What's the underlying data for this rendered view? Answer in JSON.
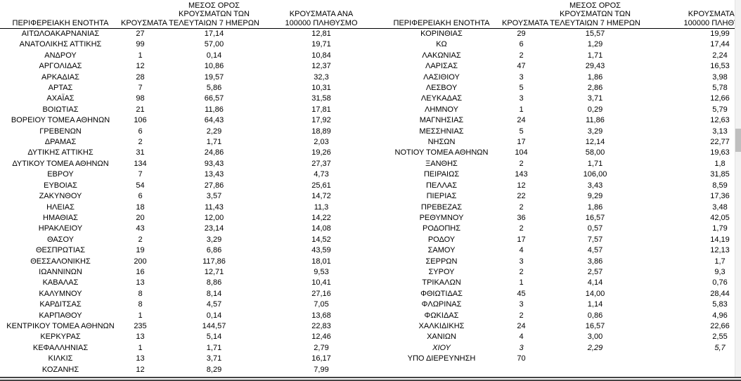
{
  "table": {
    "headers": {
      "region": "ΠΕΡΙΦΕΡΕΙΑΚΗ ΕΝΟΤΗΤΑ",
      "cases": "ΚΡΟΥΣΜΑΤΑ",
      "avg7_line1": "ΜΕΣΟΣ ΟΡΟΣ",
      "avg7_line2": "ΚΡΟΥΣΜΑΤΩΝ ΤΩΝ",
      "avg7_line3": "ΤΕΛΕΥΤΑΙΩΝ 7 ΗΜΕΡΩΝ",
      "per100k_line1": "ΚΡΟΥΣΜΑΤΑ ΑΝΑ",
      "per100k_line2": "100000 ΠΛΗΘΥΣΜΟ"
    },
    "left_rows": [
      {
        "region": "ΑΙΤΩΛΟΑΚΑΡΝΑΝΙΑΣ",
        "cases": "27",
        "avg7": "17,14",
        "per100k": "12,81"
      },
      {
        "region": "ΑΝΑΤΟΛΙΚΗΣ ΑΤΤΙΚΗΣ",
        "cases": "99",
        "avg7": "57,00",
        "per100k": "19,71"
      },
      {
        "region": "ΑΝΔΡΟΥ",
        "cases": "1",
        "avg7": "0,14",
        "per100k": "10,84"
      },
      {
        "region": "ΑΡΓΟΛΙΔΑΣ",
        "cases": "12",
        "avg7": "10,86",
        "per100k": "12,37"
      },
      {
        "region": "ΑΡΚΑΔΙΑΣ",
        "cases": "28",
        "avg7": "19,57",
        "per100k": "32,3"
      },
      {
        "region": "ΑΡΤΑΣ",
        "cases": "7",
        "avg7": "5,86",
        "per100k": "10,31"
      },
      {
        "region": "ΑΧΑΪΑΣ",
        "cases": "98",
        "avg7": "66,57",
        "per100k": "31,58"
      },
      {
        "region": "ΒΟΙΩΤΙΑΣ",
        "cases": "21",
        "avg7": "11,86",
        "per100k": "17,81"
      },
      {
        "region": "ΒΟΡΕΙΟΥ ΤΟΜΕΑ ΑΘΗΝΩΝ",
        "cases": "106",
        "avg7": "64,43",
        "per100k": "17,92"
      },
      {
        "region": "ΓΡΕΒΕΝΩΝ",
        "cases": "6",
        "avg7": "2,29",
        "per100k": "18,89"
      },
      {
        "region": "ΔΡΑΜΑΣ",
        "cases": "2",
        "avg7": "1,71",
        "per100k": "2,03"
      },
      {
        "region": "ΔΥΤΙΚΗΣ ΑΤΤΙΚΗΣ",
        "cases": "31",
        "avg7": "24,86",
        "per100k": "19,26"
      },
      {
        "region": "ΔΥΤΙΚΟΥ ΤΟΜΕΑ ΑΘΗΝΩΝ",
        "cases": "134",
        "avg7": "93,43",
        "per100k": "27,37"
      },
      {
        "region": "ΕΒΡΟΥ",
        "cases": "7",
        "avg7": "13,43",
        "per100k": "4,73"
      },
      {
        "region": "ΕΥΒΟΙΑΣ",
        "cases": "54",
        "avg7": "27,86",
        "per100k": "25,61"
      },
      {
        "region": "ΖΑΚΥΝΘΟΥ",
        "cases": "6",
        "avg7": "3,57",
        "per100k": "14,72"
      },
      {
        "region": "ΗΛΕΙΑΣ",
        "cases": "18",
        "avg7": "11,43",
        "per100k": "11,3"
      },
      {
        "region": "ΗΜΑΘΙΑΣ",
        "cases": "20",
        "avg7": "12,00",
        "per100k": "14,22"
      },
      {
        "region": "ΗΡΑΚΛΕΙΟΥ",
        "cases": "43",
        "avg7": "23,14",
        "per100k": "14,08"
      },
      {
        "region": "ΘΑΣΟΥ",
        "cases": "2",
        "avg7": "3,29",
        "per100k": "14,52"
      },
      {
        "region": "ΘΕΣΠΡΩΤΙΑΣ",
        "cases": "19",
        "avg7": "6,86",
        "per100k": "43,59"
      },
      {
        "region": "ΘΕΣΣΑΛΟΝΙΚΗΣ",
        "cases": "200",
        "avg7": "117,86",
        "per100k": "18,01"
      },
      {
        "region": "ΙΩΑΝΝΙΝΩΝ",
        "cases": "16",
        "avg7": "12,71",
        "per100k": "9,53"
      },
      {
        "region": "ΚΑΒΑΛΑΣ",
        "cases": "13",
        "avg7": "8,86",
        "per100k": "10,41"
      },
      {
        "region": "ΚΑΛΥΜΝΟΥ",
        "cases": "8",
        "avg7": "8,14",
        "per100k": "27,16"
      },
      {
        "region": "ΚΑΡΔΙΤΣΑΣ",
        "cases": "8",
        "avg7": "4,57",
        "per100k": "7,05"
      },
      {
        "region": "ΚΑΡΠΑΘΟΥ",
        "cases": "1",
        "avg7": "0,14",
        "per100k": "13,68"
      },
      {
        "region": "ΚΕΝΤΡΙΚΟΥ ΤΟΜΕΑ ΑΘΗΝΩΝ",
        "cases": "235",
        "avg7": "144,57",
        "per100k": "22,83"
      },
      {
        "region": "ΚΕΡΚΥΡΑΣ",
        "cases": "13",
        "avg7": "5,14",
        "per100k": "12,46"
      },
      {
        "region": "ΚΕΦΑΛΛΗΝΙΑΣ",
        "cases": "1",
        "avg7": "1,71",
        "per100k": "2,79"
      },
      {
        "region": "ΚΙΛΚΙΣ",
        "cases": "13",
        "avg7": "3,71",
        "per100k": "16,17"
      },
      {
        "region": "ΚΟΖΑΝΗΣ",
        "cases": "12",
        "avg7": "8,29",
        "per100k": "7,99"
      }
    ],
    "right_rows": [
      {
        "region": "ΚΟΡΙΝΘΙΑΣ",
        "cases": "29",
        "avg7": "15,57",
        "per100k": "19,99"
      },
      {
        "region": "ΚΩ",
        "cases": "6",
        "avg7": "1,29",
        "per100k": "17,44"
      },
      {
        "region": "ΛΑΚΩΝΙΑΣ",
        "cases": "2",
        "avg7": "1,71",
        "per100k": "2,24"
      },
      {
        "region": "ΛΑΡΙΣΑΣ",
        "cases": "47",
        "avg7": "29,43",
        "per100k": "16,53"
      },
      {
        "region": "ΛΑΣΙΘΙΟΥ",
        "cases": "3",
        "avg7": "1,86",
        "per100k": "3,98"
      },
      {
        "region": "ΛΕΣΒΟΥ",
        "cases": "5",
        "avg7": "2,86",
        "per100k": "5,78"
      },
      {
        "region": "ΛΕΥΚΑΔΑΣ",
        "cases": "3",
        "avg7": "3,71",
        "per100k": "12,66"
      },
      {
        "region": "ΛΗΜΝΟΥ",
        "cases": "1",
        "avg7": "0,29",
        "per100k": "5,79"
      },
      {
        "region": "ΜΑΓΝΗΣΙΑΣ",
        "cases": "24",
        "avg7": "11,86",
        "per100k": "12,63"
      },
      {
        "region": "ΜΕΣΣΗΝΙΑΣ",
        "cases": "5",
        "avg7": "3,29",
        "per100k": "3,13"
      },
      {
        "region": "ΝΗΣΩΝ",
        "cases": "17",
        "avg7": "12,14",
        "per100k": "22,77"
      },
      {
        "region": "ΝΟΤΙΟΥ ΤΟΜΕΑ ΑΘΗΝΩΝ",
        "cases": "104",
        "avg7": "58,00",
        "per100k": "19,63"
      },
      {
        "region": "ΞΑΝΘΗΣ",
        "cases": "2",
        "avg7": "1,71",
        "per100k": "1,8"
      },
      {
        "region": "ΠΕΙΡΑΙΩΣ",
        "cases": "143",
        "avg7": "106,00",
        "per100k": "31,85"
      },
      {
        "region": "ΠΕΛΛΑΣ",
        "cases": "12",
        "avg7": "3,43",
        "per100k": "8,59"
      },
      {
        "region": "ΠΙΕΡΙΑΣ",
        "cases": "22",
        "avg7": "9,29",
        "per100k": "17,36"
      },
      {
        "region": "ΠΡΕΒΕΖΑΣ",
        "cases": "2",
        "avg7": "1,86",
        "per100k": "3,48"
      },
      {
        "region": "ΡΕΘΥΜΝΟΥ",
        "cases": "36",
        "avg7": "16,57",
        "per100k": "42,05"
      },
      {
        "region": "ΡΟΔΟΠΗΣ",
        "cases": "2",
        "avg7": "0,57",
        "per100k": "1,79"
      },
      {
        "region": "ΡΟΔΟΥ",
        "cases": "17",
        "avg7": "7,57",
        "per100k": "14,19"
      },
      {
        "region": "ΣΑΜΟΥ",
        "cases": "4",
        "avg7": "4,57",
        "per100k": "12,13"
      },
      {
        "region": "ΣΕΡΡΩΝ",
        "cases": "3",
        "avg7": "3,86",
        "per100k": "1,7"
      },
      {
        "region": "ΣΥΡΟΥ",
        "cases": "2",
        "avg7": "2,57",
        "per100k": "9,3"
      },
      {
        "region": "ΤΡΙΚΑΛΩΝ",
        "cases": "1",
        "avg7": "4,14",
        "per100k": "0,76"
      },
      {
        "region": "ΦΘΙΩΤΙΔΑΣ",
        "cases": "45",
        "avg7": "14,00",
        "per100k": "28,44"
      },
      {
        "region": "ΦΛΩΡΙΝΑΣ",
        "cases": "3",
        "avg7": "1,14",
        "per100k": "5,83"
      },
      {
        "region": "ΦΩΚΙΔΑΣ",
        "cases": "2",
        "avg7": "0,86",
        "per100k": "4,96"
      },
      {
        "region": "ΧΑΛΚΙΔΙΚΗΣ",
        "cases": "24",
        "avg7": "16,57",
        "per100k": "22,66"
      },
      {
        "region": "ΧΑΝΙΩΝ",
        "cases": "4",
        "avg7": "3,00",
        "per100k": "2,55"
      },
      {
        "region": "ΧΙΟΥ",
        "cases": "3",
        "avg7": "2,29",
        "per100k": "5,7",
        "style": "italic"
      },
      {
        "region": "ΥΠΟ ΔΙΕΡΕΥΝΗΣΗ",
        "cases": "70",
        "avg7": "",
        "per100k": ""
      }
    ]
  }
}
